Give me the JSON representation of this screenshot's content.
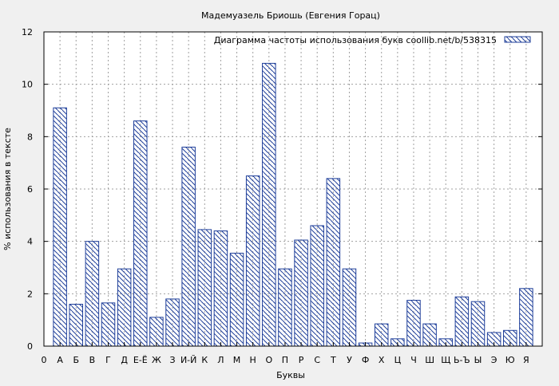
{
  "chart_data": {
    "type": "bar",
    "title": "Мадемуазель Бриошь (Евгения Горац)",
    "xlabel": "Буквы",
    "ylabel": "% использования в тексте",
    "ylim": [
      0,
      12
    ],
    "yticks": [
      0,
      2,
      4,
      6,
      8,
      10,
      12
    ],
    "grid": true,
    "legend": "top-right",
    "categories": [
      "А",
      "Б",
      "В",
      "Г",
      "Д",
      "Е-Ё",
      "Ж",
      "З",
      "И-Й",
      "К",
      "Л",
      "М",
      "Н",
      "О",
      "П",
      "Р",
      "С",
      "Т",
      "У",
      "Ф",
      "Х",
      "Ц",
      "Ч",
      "Ш",
      "Щ",
      "Ь-Ъ",
      "Ы",
      "Э",
      "Ю",
      "Я"
    ],
    "x_tick_labels": [
      "0",
      "А",
      "Б",
      "В",
      "Г",
      "Д",
      "Е-Ё",
      "Ж",
      "З",
      "И-Й",
      "К",
      "Л",
      "М",
      "Н",
      "О",
      "П",
      "Р",
      "С",
      "Т",
      "У",
      "Ф",
      "Х",
      "Ц",
      "Ч",
      "Ш",
      "Щ",
      "Ь-Ъ",
      "Ы",
      "Э",
      "Ю",
      "Я"
    ],
    "series": [
      {
        "name": "Диаграмма частоты использования букв  coollib.net/b/538315",
        "values": [
          9.1,
          1.6,
          4.0,
          1.65,
          2.95,
          8.6,
          1.1,
          1.8,
          7.6,
          4.45,
          4.4,
          3.55,
          6.5,
          10.8,
          2.95,
          4.05,
          4.6,
          6.4,
          2.95,
          0.12,
          0.85,
          0.28,
          1.75,
          0.85,
          0.28,
          1.88,
          1.7,
          0.52,
          0.6,
          2.2
        ]
      }
    ],
    "colors": {
      "bar_stroke": "#1f3f9a",
      "hatch": "#1f3f9a",
      "bar_fill": "#ffffff",
      "plot_bg": "#ffffff",
      "grid": "#a0a0a0"
    }
  }
}
